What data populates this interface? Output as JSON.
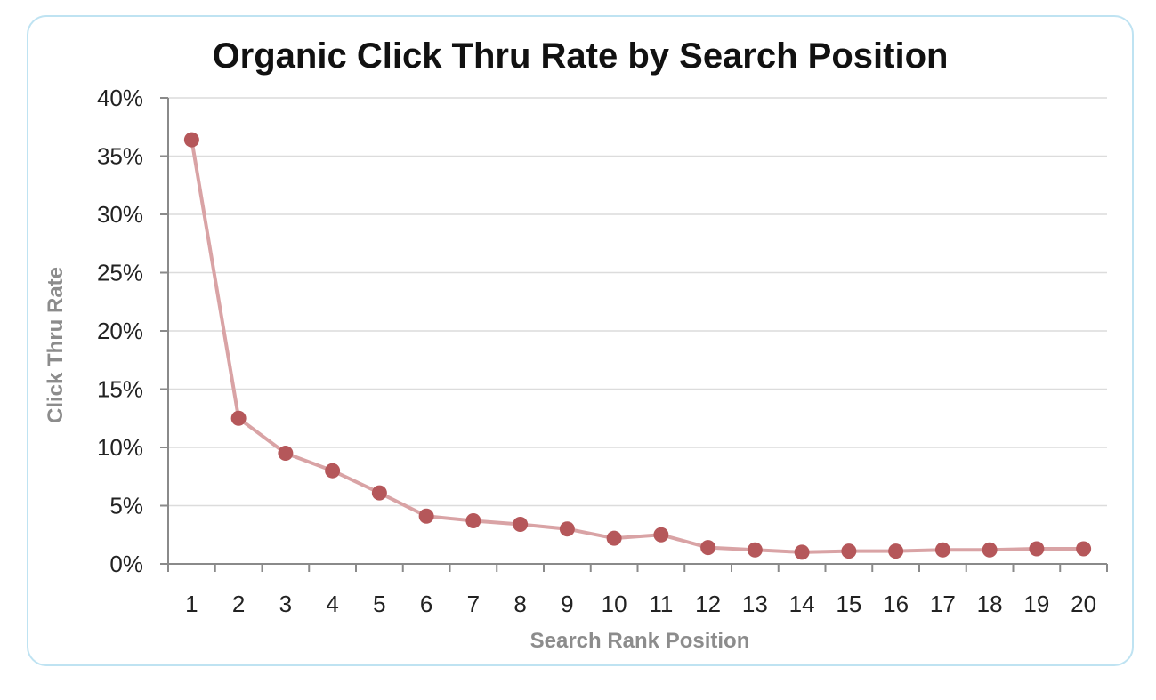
{
  "chart_data": {
    "type": "line",
    "title": "Organic Click Thru Rate by Search Position",
    "xlabel": "Search Rank Position",
    "ylabel": "Click Thru Rate",
    "categories": [
      "1",
      "2",
      "3",
      "4",
      "5",
      "6",
      "7",
      "8",
      "9",
      "10",
      "11",
      "12",
      "13",
      "14",
      "15",
      "16",
      "17",
      "18",
      "19",
      "20"
    ],
    "series": [
      {
        "values": [
          36.4,
          12.5,
          9.5,
          8.0,
          6.1,
          4.1,
          3.7,
          3.4,
          3.0,
          2.2,
          2.5,
          1.4,
          1.2,
          1.0,
          1.1,
          1.1,
          1.2,
          1.2,
          1.3,
          1.3
        ],
        "color": "#b5575a",
        "line_color": "#d9a3a5"
      }
    ],
    "ylim": [
      0,
      40
    ],
    "yticks": [
      0,
      5,
      10,
      15,
      20,
      25,
      30,
      35,
      40
    ],
    "ytick_labels": [
      "0%",
      "5%",
      "10%",
      "15%",
      "20%",
      "25%",
      "30%",
      "35%",
      "40%"
    ],
    "grid": true,
    "legend": "none",
    "colors": {
      "frame_border": "#bfe3f2",
      "grid": "#dcdcdc",
      "axis": "#8a8a8a"
    }
  }
}
